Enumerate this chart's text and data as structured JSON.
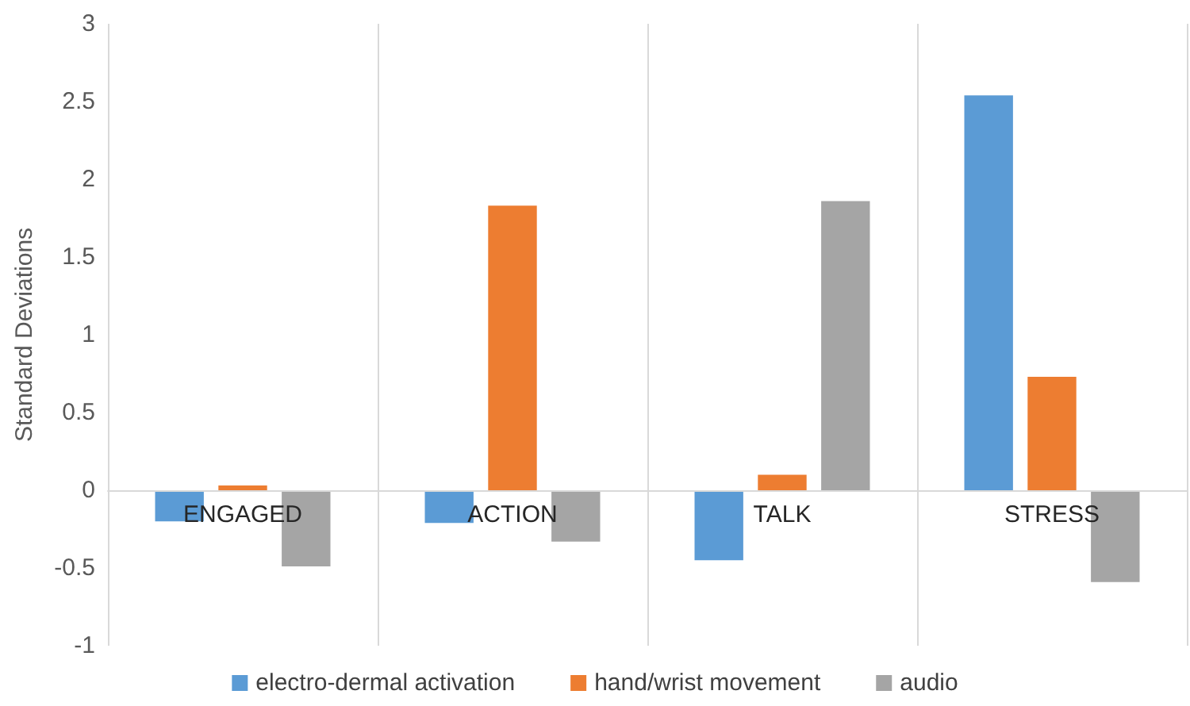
{
  "chart_data": {
    "type": "bar",
    "ylabel": "Standard Deviations",
    "categories": [
      "ENGAGED",
      "ACTION",
      "TALK",
      "STRESS"
    ],
    "series": [
      {
        "name": "electro-dermal activation",
        "color": "#5b9bd5",
        "values": [
          -0.2,
          -0.21,
          -0.45,
          2.54
        ]
      },
      {
        "name": "hand/wrist movement",
        "color": "#ed7d31",
        "values": [
          0.03,
          1.83,
          0.1,
          0.73
        ]
      },
      {
        "name": "audio",
        "color": "#a5a5a5",
        "values": [
          -0.49,
          -0.33,
          1.86,
          -0.59
        ]
      }
    ],
    "ylim": [
      -1,
      3
    ],
    "yticks": [
      -1,
      -0.5,
      0,
      0.5,
      1,
      1.5,
      2,
      2.5,
      3
    ],
    "grid": "x",
    "legend": "bottom"
  }
}
